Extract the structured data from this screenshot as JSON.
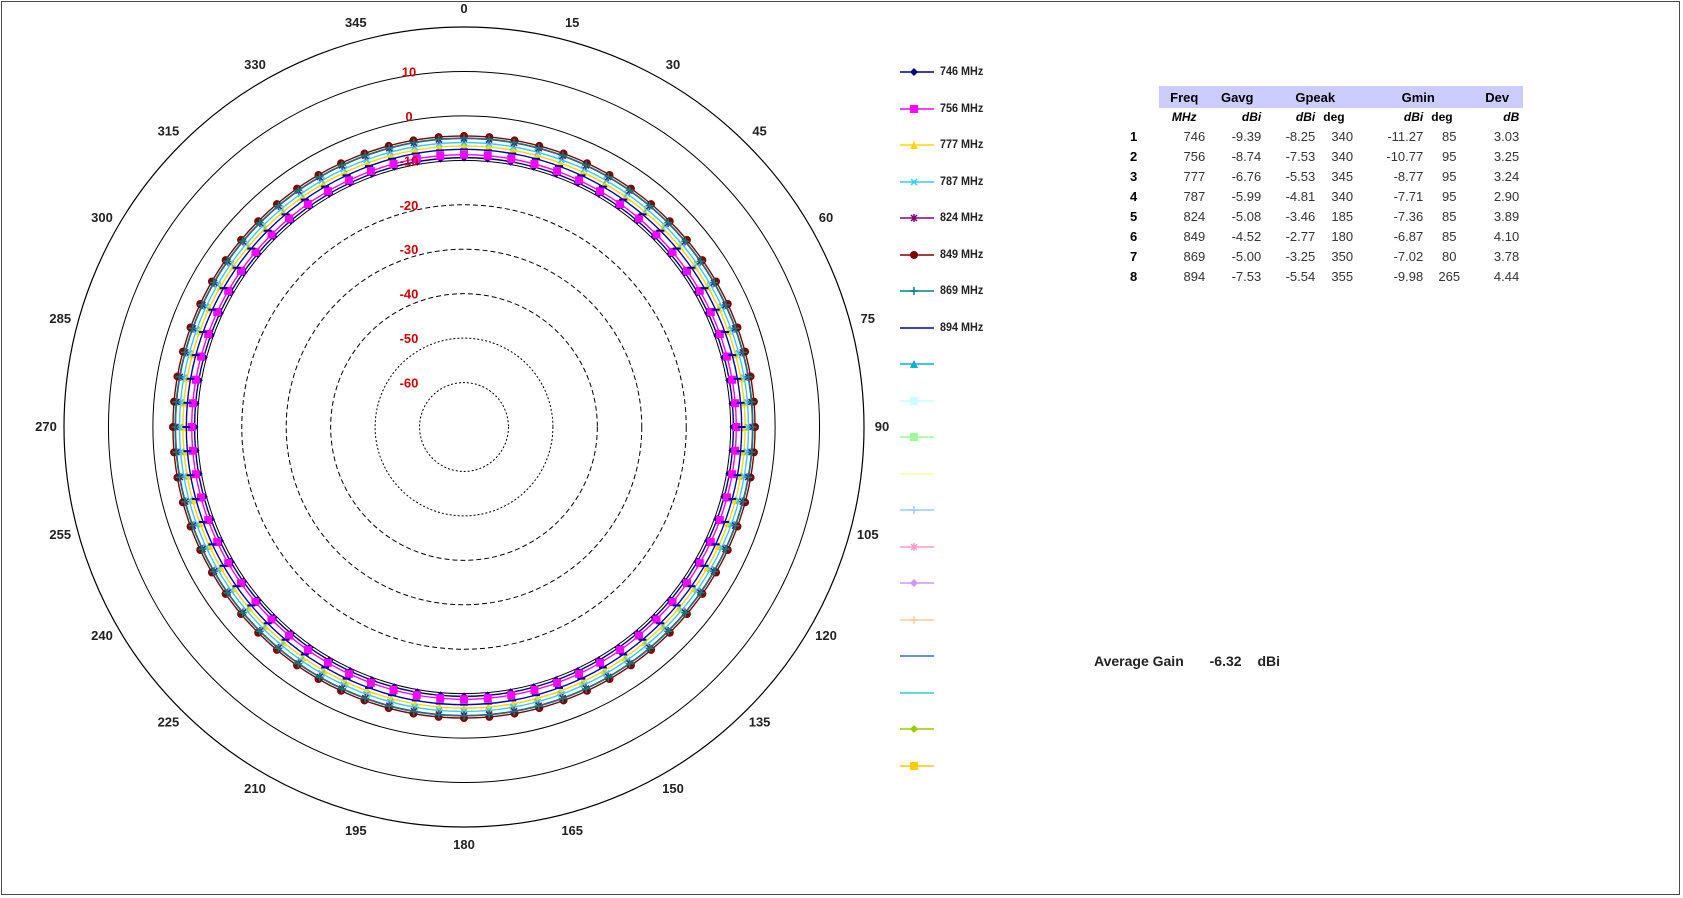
{
  "chart_data": {
    "type": "polar-line",
    "radial_axis": {
      "ticks": [
        "10",
        "0",
        "-10",
        "-20",
        "-30",
        "-40",
        "-50",
        "-60"
      ],
      "range": [
        -70,
        20
      ],
      "tick_color": "#cc0000"
    },
    "angular_axis": {
      "ticks": [
        "0",
        "15",
        "30",
        "45",
        "60",
        "75",
        "90",
        "105",
        "120",
        "135",
        "150",
        "165",
        "180",
        "195",
        "210",
        "225",
        "240",
        "255",
        "270",
        "285",
        "300",
        "315",
        "330",
        "345"
      ],
      "step_deg": 15,
      "direction": "clockwise",
      "zero": "top"
    },
    "marker_step_deg": 5,
    "series": [
      {
        "name": "746 MHz",
        "color": "#000080",
        "marker": "diamond",
        "avg_gain": -9.39,
        "peak_gain": -8.25,
        "peak_deg": 340,
        "min_gain": -11.27,
        "min_deg": 85
      },
      {
        "name": "756 MHz",
        "color": "#ff00ff",
        "marker": "square",
        "avg_gain": -8.74,
        "peak_gain": -7.53,
        "peak_deg": 340,
        "min_gain": -10.77,
        "min_deg": 95
      },
      {
        "name": "777 MHz",
        "color": "#ffd700",
        "marker": "triangle",
        "avg_gain": -6.76,
        "peak_gain": -5.53,
        "peak_deg": 345,
        "min_gain": -8.77,
        "min_deg": 95
      },
      {
        "name": "787 MHz",
        "color": "#33ccff",
        "marker": "x",
        "avg_gain": -5.99,
        "peak_gain": -4.81,
        "peak_deg": 340,
        "min_gain": -7.71,
        "min_deg": 95
      },
      {
        "name": "824 MHz",
        "color": "#800080",
        "marker": "star",
        "avg_gain": -5.08,
        "peak_gain": -3.46,
        "peak_deg": 185,
        "min_gain": -7.36,
        "min_deg": 85
      },
      {
        "name": "849 MHz",
        "color": "#800000",
        "marker": "circle",
        "avg_gain": -4.52,
        "peak_gain": -2.77,
        "peak_deg": 180,
        "min_gain": -6.87,
        "min_deg": 85
      },
      {
        "name": "869 MHz",
        "color": "#008080",
        "marker": "plus",
        "avg_gain": -5.0,
        "peak_gain": -3.25,
        "peak_deg": 350,
        "min_gain": -7.02,
        "min_deg": 80
      },
      {
        "name": "894 MHz",
        "color": "#0000aa",
        "marker": "dash",
        "avg_gain": -7.53,
        "peak_gain": -5.54,
        "peak_deg": 355,
        "min_gain": -9.98,
        "min_deg": 265
      }
    ],
    "empty_legend_entries": [
      {
        "color": "#00b0d8",
        "marker": "triangle"
      },
      {
        "color": "#ccffff",
        "marker": "square"
      },
      {
        "color": "#99ff99",
        "marker": "square"
      },
      {
        "color": "#ffff99",
        "marker": "dash"
      },
      {
        "color": "#99ccff",
        "marker": "plus"
      },
      {
        "color": "#ff99cc",
        "marker": "star"
      },
      {
        "color": "#cc99ff",
        "marker": "diamond"
      },
      {
        "color": "#ffcc99",
        "marker": "plus"
      },
      {
        "color": "#3366ff",
        "marker": "dash"
      },
      {
        "color": "#33cccc",
        "marker": "dash"
      },
      {
        "color": "#99cc00",
        "marker": "diamond"
      },
      {
        "color": "#ffcc00",
        "marker": "square"
      }
    ]
  },
  "table": {
    "header1": {
      "freq": "Freq",
      "gavg": "Gavg",
      "gpeak": "Gpeak",
      "gmin": "Gmin",
      "dev": "Dev"
    },
    "header2": {
      "freq": "MHz",
      "gavg": "dBi",
      "gpeak_dbi": "dBi",
      "gpeak_deg": "deg",
      "gmin_dbi": "dBi",
      "gmin_deg": "deg",
      "dev": "dB"
    },
    "rows": [
      {
        "idx": "1",
        "freq": "746",
        "gavg": "-9.39",
        "gpeak": "-8.25",
        "gpeak_deg": "340",
        "gmin": "-11.27",
        "gmin_deg": "85",
        "dev": "3.03"
      },
      {
        "idx": "2",
        "freq": "756",
        "gavg": "-8.74",
        "gpeak": "-7.53",
        "gpeak_deg": "340",
        "gmin": "-10.77",
        "gmin_deg": "95",
        "dev": "3.25"
      },
      {
        "idx": "3",
        "freq": "777",
        "gavg": "-6.76",
        "gpeak": "-5.53",
        "gpeak_deg": "345",
        "gmin": "-8.77",
        "gmin_deg": "95",
        "dev": "3.24"
      },
      {
        "idx": "4",
        "freq": "787",
        "gavg": "-5.99",
        "gpeak": "-4.81",
        "gpeak_deg": "340",
        "gmin": "-7.71",
        "gmin_deg": "95",
        "dev": "2.90"
      },
      {
        "idx": "5",
        "freq": "824",
        "gavg": "-5.08",
        "gpeak": "-3.46",
        "gpeak_deg": "185",
        "gmin": "-7.36",
        "gmin_deg": "85",
        "dev": "3.89"
      },
      {
        "idx": "6",
        "freq": "849",
        "gavg": "-4.52",
        "gpeak": "-2.77",
        "gpeak_deg": "180",
        "gmin": "-6.87",
        "gmin_deg": "85",
        "dev": "4.10"
      },
      {
        "idx": "7",
        "freq": "869",
        "gavg": "-5.00",
        "gpeak": "-3.25",
        "gpeak_deg": "350",
        "gmin": "-7.02",
        "gmin_deg": "80",
        "dev": "3.78"
      },
      {
        "idx": "8",
        "freq": "894",
        "gavg": "-7.53",
        "gpeak": "-5.54",
        "gpeak_deg": "355",
        "gmin": "-9.98",
        "gmin_deg": "265",
        "dev": "4.44"
      }
    ]
  },
  "average_gain": {
    "label": "Average Gain",
    "value": "-6.32",
    "unit": "dBi"
  }
}
